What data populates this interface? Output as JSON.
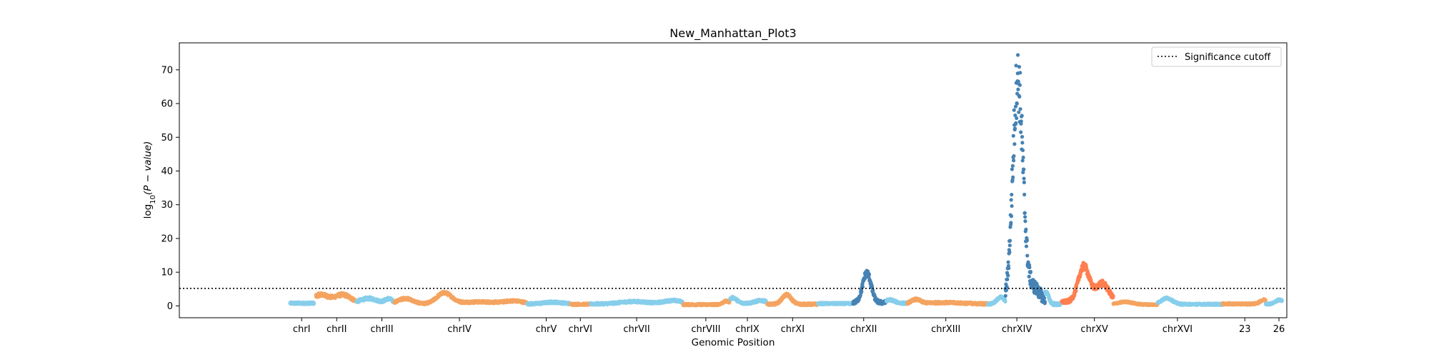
{
  "chart_data": {
    "type": "scatter",
    "title": "New_Manhattan_Plot3",
    "xlabel": "Genomic Position",
    "ylabel": "log10(P − value)",
    "ylabel_parts": {
      "pre": "log",
      "sub": "10",
      "post": "(P − value)"
    },
    "xlim": [
      -0.08,
      1.12
    ],
    "ylim": [
      -3.5,
      78
    ],
    "yticks": [
      0,
      10,
      20,
      30,
      40,
      50,
      60,
      70
    ],
    "grid": false,
    "legend": {
      "position": "top-right",
      "entries": [
        {
          "label": "Significance cutoff",
          "style": "dotted",
          "color": "#000000"
        }
      ]
    },
    "significance_cutoff": 5.2,
    "x_ticks": [
      {
        "label": "chrI",
        "x": 0.0525
      },
      {
        "label": "chrII",
        "x": 0.0905
      },
      {
        "label": "chrIII",
        "x": 0.1395
      },
      {
        "label": "chrIV",
        "x": 0.2235
      },
      {
        "label": "chrV",
        "x": 0.3175
      },
      {
        "label": "chrVI",
        "x": 0.3545
      },
      {
        "label": "chrVII",
        "x": 0.4155
      },
      {
        "label": "chrVIII",
        "x": 0.4905
      },
      {
        "label": "chrIX",
        "x": 0.5355
      },
      {
        "label": "chrXI",
        "x": 0.5845
      },
      {
        "label": "chrXII",
        "x": 0.6615
      },
      {
        "label": "chrXIII",
        "x": 0.7505
      },
      {
        "label": "chrXIV",
        "x": 0.8275
      },
      {
        "label": "chrXV",
        "x": 0.9115
      },
      {
        "label": "chrXVI",
        "x": 1.0015
      },
      {
        "label": "23",
        "x": 1.0745
      },
      {
        "label": "26",
        "x": 1.1115
      }
    ],
    "colors": {
      "light_blue": "#87ceeb",
      "sandy_orange": "#f4a460",
      "steel_blue": "#4682b4",
      "coral": "#ff7f50"
    },
    "segments": [
      {
        "name": "chrI",
        "start": 0.04,
        "end": 0.066,
        "color": "light_blue",
        "base": 0.8,
        "peaks": [],
        "noise": 0.6
      },
      {
        "name": "chrII",
        "start": 0.068,
        "end": 0.11,
        "color": "sandy_orange",
        "base": 0.8,
        "peaks": [
          [
            0.073,
            2.5,
            0.008
          ],
          [
            0.097,
            2.5,
            0.009
          ]
        ],
        "noise": 0.8
      },
      {
        "name": "chrIII",
        "start": 0.112,
        "end": 0.152,
        "color": "light_blue",
        "base": 0.6,
        "peaks": [
          [
            0.125,
            1.6,
            0.01
          ],
          [
            0.147,
            1.4,
            0.004
          ]
        ],
        "noise": 0.7
      },
      {
        "name": "chrIV",
        "start": 0.153,
        "end": 0.296,
        "color": "sandy_orange",
        "base": 0.6,
        "peaks": [
          [
            0.165,
            1.6,
            0.008
          ],
          [
            0.207,
            3.2,
            0.008
          ],
          [
            0.245,
            0.6,
            0.02
          ],
          [
            0.283,
            0.8,
            0.01
          ]
        ],
        "noise": 0.6
      },
      {
        "name": "chrV",
        "start": 0.297,
        "end": 0.343,
        "color": "light_blue",
        "base": 0.6,
        "peaks": [
          [
            0.325,
            0.5,
            0.01
          ]
        ],
        "noise": 0.6
      },
      {
        "name": "chrVI",
        "start": 0.344,
        "end": 0.365,
        "color": "sandy_orange",
        "base": 0.5,
        "peaks": [],
        "noise": 0.5
      },
      {
        "name": "chrVII",
        "start": 0.366,
        "end": 0.465,
        "color": "light_blue",
        "base": 0.6,
        "peaks": [
          [
            0.413,
            0.7,
            0.015
          ],
          [
            0.455,
            1.0,
            0.01
          ]
        ],
        "noise": 0.6
      },
      {
        "name": "chrVIII",
        "start": 0.466,
        "end": 0.516,
        "color": "sandy_orange",
        "base": 0.4,
        "peaks": [
          [
            0.513,
            1.0,
            0.004
          ]
        ],
        "noise": 0.5
      },
      {
        "name": "chrIX",
        "start": 0.517,
        "end": 0.556,
        "color": "light_blue",
        "base": 0.8,
        "peaks": [
          [
            0.52,
            1.6,
            0.004
          ],
          [
            0.55,
            0.8,
            0.006
          ]
        ],
        "noise": 0.6
      },
      {
        "name": "chrXI",
        "start": 0.557,
        "end": 0.611,
        "color": "sandy_orange",
        "base": 0.5,
        "peaks": [
          [
            0.578,
            2.8,
            0.005
          ]
        ],
        "noise": 0.6
      },
      {
        "name": "chrX",
        "start": 0.612,
        "end": 0.649,
        "color": "light_blue",
        "base": 0.7,
        "peaks": [],
        "noise": 0.5
      },
      {
        "name": "chrXII",
        "start": 0.65,
        "end": 0.685,
        "color": "steel_blue",
        "base": 1.0,
        "peaks": [
          [
            0.665,
            8.8,
            0.0045
          ]
        ],
        "noise": 1.0
      },
      {
        "name": "chrXII_right",
        "start": 0.686,
        "end": 0.708,
        "color": "light_blue",
        "base": 0.8,
        "peaks": [
          [
            0.69,
            1.0,
            0.005
          ]
        ],
        "noise": 0.6
      },
      {
        "name": "chrXIII",
        "start": 0.709,
        "end": 0.795,
        "color": "sandy_orange",
        "base": 0.6,
        "peaks": [
          [
            0.718,
            1.2,
            0.005
          ],
          [
            0.748,
            0.4,
            0.02
          ]
        ],
        "noise": 0.6
      },
      {
        "name": "chrXIII_right",
        "start": 0.796,
        "end": 0.815,
        "color": "light_blue",
        "base": 0.6,
        "peaks": [
          [
            0.81,
            2.0,
            0.004
          ]
        ],
        "noise": 0.6
      },
      {
        "name": "chrXIV",
        "start": 0.815,
        "end": 0.858,
        "color": "steel_blue",
        "base": 0.5,
        "peaks": [
          [
            0.8285,
            66.0,
            0.0055
          ],
          [
            0.845,
            5.0,
            0.008
          ]
        ],
        "noise": 2.5
      },
      {
        "name": "chrXIV_right",
        "start": 0.858,
        "end": 0.875,
        "color": "light_blue",
        "base": 0.5,
        "peaks": [
          [
            0.859,
            3.5,
            0.003
          ]
        ],
        "noise": 0.8
      },
      {
        "name": "chrXV",
        "start": 0.876,
        "end": 0.932,
        "color": "coral",
        "base": 1.2,
        "peaks": [
          [
            0.9,
            10.5,
            0.006
          ],
          [
            0.92,
            5.5,
            0.007
          ]
        ],
        "noise": 1.0
      },
      {
        "name": "chrXV_right",
        "start": 0.932,
        "end": 0.98,
        "color": "sandy_orange",
        "base": 0.4,
        "peaks": [
          [
            0.945,
            0.8,
            0.008
          ]
        ],
        "noise": 0.4
      },
      {
        "name": "chrXVI",
        "start": 0.98,
        "end": 1.05,
        "color": "light_blue",
        "base": 0.5,
        "peaks": [
          [
            0.99,
            1.8,
            0.006
          ]
        ],
        "noise": 0.5
      },
      {
        "name": "chr23",
        "start": 1.05,
        "end": 1.097,
        "color": "sandy_orange",
        "base": 0.6,
        "peaks": [
          [
            1.095,
            1.2,
            0.004
          ]
        ],
        "noise": 0.5
      },
      {
        "name": "chr26",
        "start": 1.097,
        "end": 1.115,
        "color": "light_blue",
        "base": 0.6,
        "peaks": [
          [
            1.112,
            1.2,
            0.004
          ]
        ],
        "noise": 0.5
      }
    ]
  }
}
